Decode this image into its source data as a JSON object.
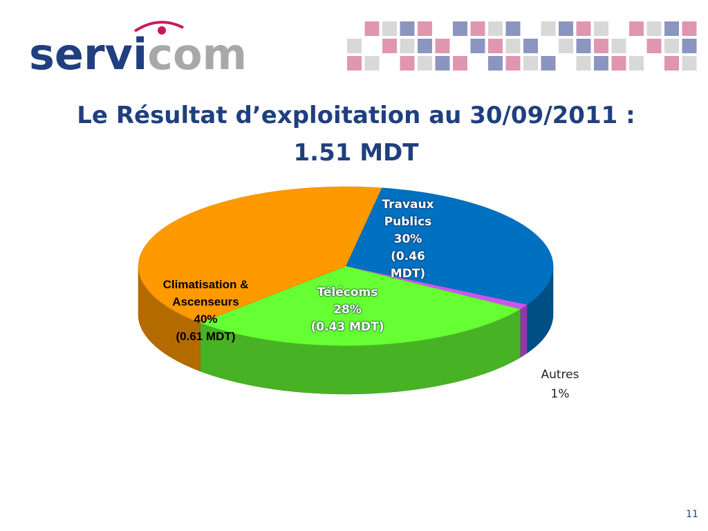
{
  "logo": [
    "servi",
    "com"
  ],
  "chart_data": {
    "type": "pie",
    "title": "Le Résultat d’exploitation au 30/09/2011 :",
    "subtitle": "1.51 MDT",
    "categories": [
      "Travaux Publics",
      "Autres",
      "Télécoms",
      "Climatisation & Ascenseurs"
    ],
    "values": [
      30,
      1,
      28,
      40
    ],
    "value_labels": [
      "30%",
      "1%",
      "28%",
      "40%"
    ],
    "amounts": [
      0.46,
      null,
      0.43,
      0.61
    ],
    "amount_labels": [
      "(0.46 MDT)",
      null,
      "(0.43 MDT)",
      "(0.61 MDT)"
    ],
    "colors": [
      "#0070c0",
      "#cc55ee",
      "#66ff33",
      "#ff9900"
    ]
  },
  "slide_number": "11"
}
